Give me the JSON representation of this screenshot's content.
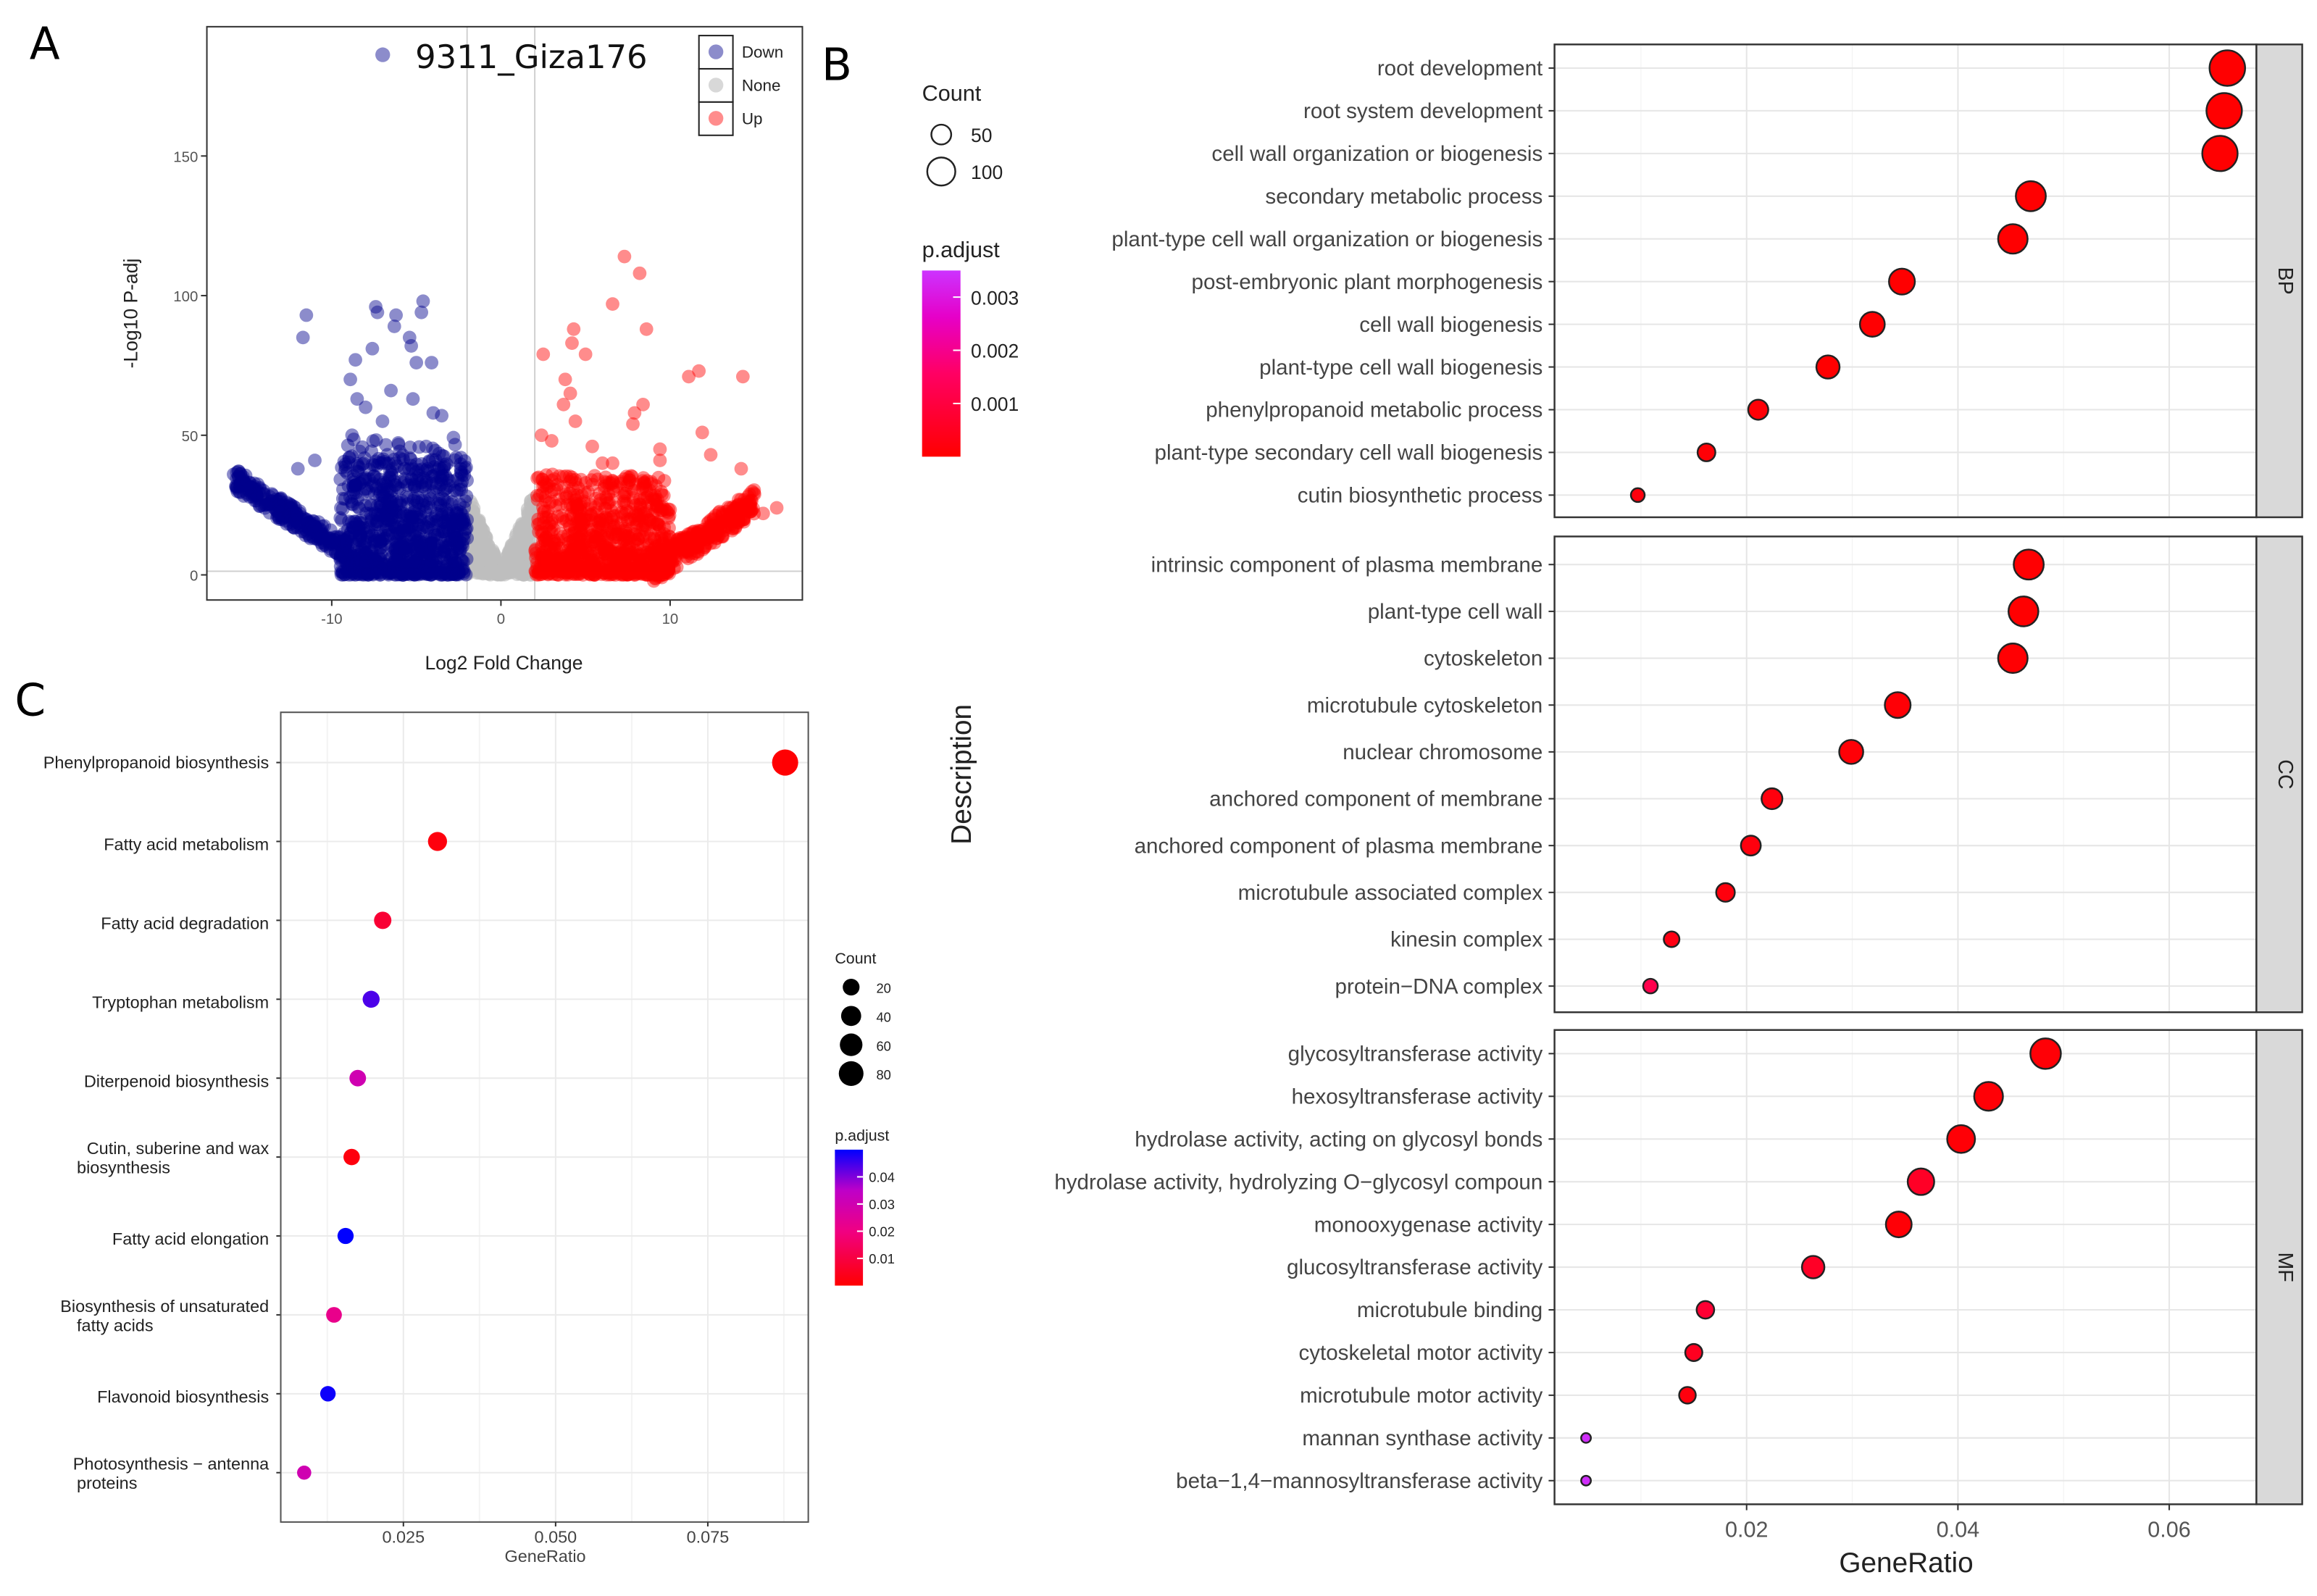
{
  "panel_labels": {
    "a": "A",
    "b": "B",
    "c": "C"
  },
  "chart_data": [
    {
      "id": "volcano",
      "type": "scatter",
      "title": "9311_Giza176",
      "xlabel": "Log2 Fold Change",
      "ylabel": "-Log10 P-adj",
      "xlim": [
        -17.5,
        17.5
      ],
      "ylim": [
        -10,
        195
      ],
      "xticks": [
        -10,
        0,
        10
      ],
      "yticks": [
        0,
        50,
        100,
        150
      ],
      "thresholds": {
        "log2fc": [
          -2,
          2
        ],
        "padj_line": 1.3
      },
      "legend": [
        {
          "label": "Down",
          "color": "#00008B"
        },
        {
          "label": "None",
          "color": "#BEBEBE"
        },
        {
          "label": "Up",
          "color": "#FF0000"
        }
      ],
      "legend_position": "top-right",
      "outliers": {
        "Down": [
          [
            -11.5,
            93
          ],
          [
            -11.7,
            85
          ],
          [
            -7.4,
            96
          ],
          [
            -7.3,
            94
          ],
          [
            -4.6,
            98
          ],
          [
            -4.7,
            94
          ],
          [
            -6.2,
            93
          ],
          [
            -6.3,
            89
          ],
          [
            -5.4,
            85
          ],
          [
            -5.3,
            82
          ],
          [
            -7.6,
            81
          ],
          [
            -8.6,
            77
          ],
          [
            -5.0,
            76
          ],
          [
            -4.1,
            76
          ],
          [
            -8.9,
            70
          ],
          [
            -6.5,
            66
          ],
          [
            -5.2,
            63
          ],
          [
            -4.0,
            58
          ],
          [
            -8.5,
            63
          ],
          [
            -8.0,
            60
          ],
          [
            -15.8,
            36
          ],
          [
            -15.5,
            35
          ],
          [
            -12.0,
            38
          ],
          [
            -11.0,
            41
          ],
          [
            -8.8,
            50
          ],
          [
            -7.0,
            55
          ],
          [
            -3.5,
            57
          ]
        ],
        "Up": [
          [
            7.3,
            114
          ],
          [
            8.2,
            108
          ],
          [
            6.6,
            97
          ],
          [
            8.6,
            88
          ],
          [
            4.3,
            88
          ],
          [
            4.2,
            83
          ],
          [
            5.0,
            79
          ],
          [
            2.5,
            79
          ],
          [
            3.8,
            70
          ],
          [
            11.1,
            71
          ],
          [
            11.7,
            73
          ],
          [
            14.3,
            71
          ],
          [
            4.1,
            65
          ],
          [
            3.7,
            61
          ],
          [
            7.9,
            58
          ],
          [
            8.4,
            61
          ],
          [
            7.8,
            54
          ],
          [
            4.4,
            55
          ],
          [
            11.9,
            51
          ],
          [
            9.4,
            45
          ],
          [
            9.4,
            41
          ],
          [
            14.2,
            38
          ],
          [
            12.4,
            43
          ],
          [
            16.3,
            24
          ],
          [
            15.5,
            22
          ],
          [
            9.9,
            2
          ],
          [
            6.0,
            40
          ],
          [
            6.6,
            40
          ],
          [
            2.4,
            50
          ],
          [
            3.0,
            48
          ],
          [
            5.4,
            46
          ]
        ]
      }
    },
    {
      "id": "go-dotplot",
      "type": "scatter",
      "xlabel": "GeneRatio",
      "ylabel": "Description",
      "xlim": [
        0.0018,
        0.0683
      ],
      "xticks": [
        0.02,
        0.04,
        0.06
      ],
      "size_legend": {
        "title": "Count",
        "values": [
          50,
          100
        ]
      },
      "color_legend": {
        "title": "p.adjust",
        "ticks": [
          0.001,
          0.002,
          0.003
        ],
        "range": [
          0,
          0.0035
        ],
        "low": "#FF0000",
        "high": "#CC33FF"
      },
      "facets": [
        {
          "name": "BP",
          "terms": [
            {
              "label": "root development",
              "ratio": 0.0655,
              "count": 160,
              "padj": 1e-05
            },
            {
              "label": "root system development",
              "ratio": 0.0652,
              "count": 159,
              "padj": 1e-05
            },
            {
              "label": "cell wall organization or biogenesis",
              "ratio": 0.0648,
              "count": 158,
              "padj": 1e-05
            },
            {
              "label": "secondary metabolic process",
              "ratio": 0.0469,
              "count": 114,
              "padj": 2e-05
            },
            {
              "label": "plant-type cell wall organization or biogenesis",
              "ratio": 0.0452,
              "count": 110,
              "padj": 1e-05
            },
            {
              "label": "post-embryonic plant morphogenesis",
              "ratio": 0.0347,
              "count": 85,
              "padj": 2e-05
            },
            {
              "label": "cell wall biogenesis",
              "ratio": 0.0319,
              "count": 78,
              "padj": 3e-05
            },
            {
              "label": "plant-type cell wall biogenesis",
              "ratio": 0.0277,
              "count": 68,
              "padj": 2e-05
            },
            {
              "label": "phenylpropanoid metabolic process",
              "ratio": 0.0211,
              "count": 51,
              "padj": 0.0001
            },
            {
              "label": "plant-type secondary cell wall biogenesis",
              "ratio": 0.0162,
              "count": 40,
              "padj": 0.0001
            },
            {
              "label": "cutin biosynthetic process",
              "ratio": 0.0097,
              "count": 24,
              "padj": 0.0002
            }
          ]
        },
        {
          "name": "CC",
          "terms": [
            {
              "label": "intrinsic component of plasma membrane",
              "ratio": 0.0467,
              "count": 114,
              "padj": 3e-05
            },
            {
              "label": "plant-type cell wall",
              "ratio": 0.0462,
              "count": 113,
              "padj": 1e-05
            },
            {
              "label": "cytoskeleton",
              "ratio": 0.0452,
              "count": 110,
              "padj": 5e-05
            },
            {
              "label": "microtubule cytoskeleton",
              "ratio": 0.0343,
              "count": 84,
              "padj": 0.0001
            },
            {
              "label": "nuclear chromosome",
              "ratio": 0.0299,
              "count": 73,
              "padj": 0.0001
            },
            {
              "label": "anchored component of membrane",
              "ratio": 0.0224,
              "count": 55,
              "padj": 0.0002
            },
            {
              "label": "anchored component of plasma membrane",
              "ratio": 0.0204,
              "count": 50,
              "padj": 0.0002
            },
            {
              "label": "microtubule associated complex",
              "ratio": 0.018,
              "count": 44,
              "padj": 0.0002
            },
            {
              "label": "kinesin complex",
              "ratio": 0.0129,
              "count": 31,
              "padj": 0.0003
            },
            {
              "label": "protein−DNA complex",
              "ratio": 0.0109,
              "count": 27,
              "padj": 0.0012
            }
          ]
        },
        {
          "name": "MF",
          "terms": [
            {
              "label": "glycosyltransferase activity",
              "ratio": 0.0483,
              "count": 118,
              "padj": 0.0001
            },
            {
              "label": "hexosyltransferase activity",
              "ratio": 0.0429,
              "count": 105,
              "padj": 0.0001
            },
            {
              "label": "hydrolase activity, acting on glycosyl bonds",
              "ratio": 0.0403,
              "count": 98,
              "padj": 0.0001
            },
            {
              "label": "hydrolase activity, hydrolyzing O−glycosyl compoun",
              "ratio": 0.0365,
              "count": 89,
              "padj": 0.0006
            },
            {
              "label": "monooxygenase activity",
              "ratio": 0.0344,
              "count": 84,
              "padj": 0.0001
            },
            {
              "label": "glucosyltransferase activity",
              "ratio": 0.0263,
              "count": 64,
              "padj": 0.0006
            },
            {
              "label": "microtubule binding",
              "ratio": 0.0161,
              "count": 39,
              "padj": 0.0008
            },
            {
              "label": "cytoskeletal motor activity",
              "ratio": 0.015,
              "count": 37,
              "padj": 0.0005
            },
            {
              "label": "microtubule motor activity",
              "ratio": 0.0144,
              "count": 35,
              "padj": 0.0002
            },
            {
              "label": "mannan synthase activity",
              "ratio": 0.0048,
              "count": 12,
              "padj": 0.0034
            },
            {
              "label": "beta−1,4−mannosyltransferase activity",
              "ratio": 0.0048,
              "count": 12,
              "padj": 0.0034
            }
          ]
        }
      ]
    },
    {
      "id": "kegg-dotplot",
      "type": "scatter",
      "xlabel": "GeneRatio",
      "xlim": [
        0.0049,
        0.0913
      ],
      "xticks": [
        0.025,
        0.05,
        0.075
      ],
      "xtick_labels": [
        "0.025",
        "0.050",
        "0.075"
      ],
      "size_legend": {
        "title": "Count",
        "values": [
          20,
          40,
          60,
          80
        ]
      },
      "color_legend": {
        "title": "p.adjust",
        "ticks": [
          0.01,
          0.02,
          0.03,
          0.04
        ],
        "range": [
          0,
          0.05
        ],
        "low": "#FF0000",
        "high": "#0000FF"
      },
      "terms": [
        {
          "label": [
            "Phenylpropanoid biosynthesis"
          ],
          "ratio": 0.0877,
          "count": 95,
          "padj": 0.0005
        },
        {
          "label": [
            "Fatty acid metabolism"
          ],
          "ratio": 0.0306,
          "count": 33,
          "padj": 0.002
        },
        {
          "label": [
            "Fatty acid degradation"
          ],
          "ratio": 0.0216,
          "count": 23,
          "padj": 0.008
        },
        {
          "label": [
            "Tryptophan metabolism"
          ],
          "ratio": 0.0197,
          "count": 21,
          "padj": 0.044
        },
        {
          "label": [
            "Diterpenoid biosynthesis"
          ],
          "ratio": 0.0175,
          "count": 19,
          "padj": 0.03
        },
        {
          "label": [
            "Cutin, suberine and wax",
            "biosynthesis"
          ],
          "ratio": 0.0165,
          "count": 18,
          "padj": 0.002
        },
        {
          "label": [
            "Fatty acid elongation"
          ],
          "ratio": 0.0155,
          "count": 17,
          "padj": 0.05
        },
        {
          "label": [
            "Biosynthesis of unsaturated",
            "fatty acids"
          ],
          "ratio": 0.0136,
          "count": 15,
          "padj": 0.022
        },
        {
          "label": [
            "Flavonoid biosynthesis"
          ],
          "ratio": 0.0126,
          "count": 14,
          "padj": 0.049
        },
        {
          "label": [
            "Photosynthesis − antenna",
            "proteins"
          ],
          "ratio": 0.0087,
          "count": 9,
          "padj": 0.03
        }
      ]
    }
  ]
}
